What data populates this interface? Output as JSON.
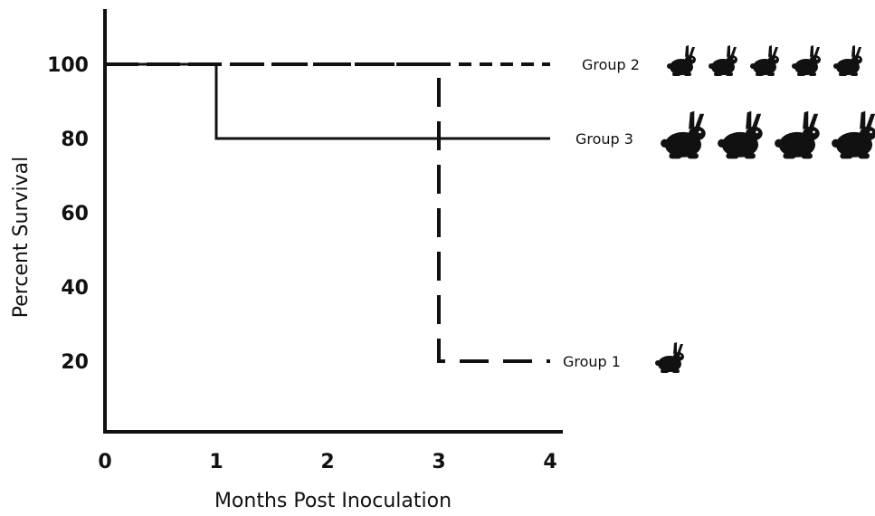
{
  "chart_data": {
    "type": "line",
    "subtype": "step",
    "title": "",
    "xlabel": "Months Post Inoculation",
    "ylabel": "Percent Survival",
    "xlim": [
      0,
      4
    ],
    "ylim": [
      0,
      100
    ],
    "x_ticks": [
      0,
      1,
      2,
      3,
      4
    ],
    "y_ticks": [
      20,
      40,
      60,
      80,
      100
    ],
    "grid": false,
    "legend": "none",
    "series": [
      {
        "name": "Group 2",
        "line_style": "dashed",
        "color": "#111111",
        "points": [
          {
            "x": 0,
            "y": 100
          },
          {
            "x": 4,
            "y": 100
          }
        ],
        "animal_icons": 5
      },
      {
        "name": "Group 3",
        "line_style": "solid",
        "color": "#111111",
        "points": [
          {
            "x": 0,
            "y": 100
          },
          {
            "x": 1,
            "y": 100
          },
          {
            "x": 1,
            "y": 80
          },
          {
            "x": 4,
            "y": 80
          }
        ],
        "animal_icons": 4
      },
      {
        "name": "Group 1",
        "line_style": "long-dashed",
        "color": "#111111",
        "points": [
          {
            "x": 0,
            "y": 100
          },
          {
            "x": 3,
            "y": 100
          },
          {
            "x": 3,
            "y": 20
          },
          {
            "x": 4,
            "y": 20
          }
        ],
        "animal_icons": 1
      }
    ]
  },
  "icons": {
    "animal": "rabbit-icon"
  }
}
